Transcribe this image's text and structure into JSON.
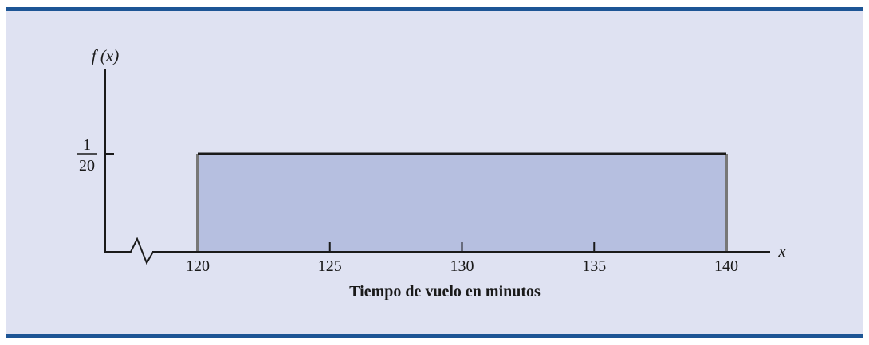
{
  "colors": {
    "frame_border": "#1d5595",
    "background": "#dfe2f2",
    "fill": "#b6bfe0",
    "axis": "#1a1a1a",
    "edge": "#777777"
  },
  "chart_data": {
    "type": "area",
    "title": "",
    "xlabel": "Tiempo de vuelo en minutos",
    "x_axis_symbol": "x",
    "ylabel": "f (x)",
    "x_ticks": [
      120,
      125,
      130,
      135,
      140
    ],
    "x_tick_labels": [
      "120",
      "125",
      "130",
      "135",
      "140"
    ],
    "y_tick": {
      "numerator": "1",
      "denominator": "20",
      "value": 0.05
    },
    "x_axis_break": true,
    "series": [
      {
        "x": [
          120,
          140
        ],
        "y": [
          0.05,
          0.05
        ]
      }
    ],
    "xlim": [
      120,
      140
    ],
    "ylim": [
      0,
      0.05
    ],
    "grid": false
  }
}
